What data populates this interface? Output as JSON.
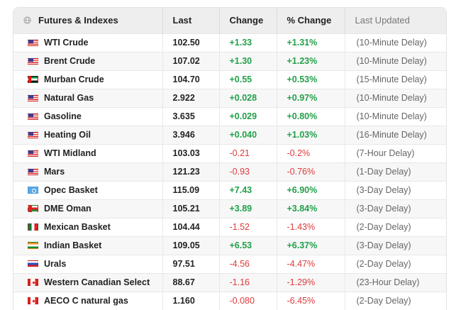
{
  "header": {
    "col_name": "Futures & Indexes",
    "col_last": "Last",
    "col_change": "Change",
    "col_pct": "% Change",
    "col_updated": "Last Updated",
    "globe_icon": "globe-icon"
  },
  "colors": {
    "positive": "#22a04a",
    "negative": "#e03a3a",
    "header_bg": "#eeeeee"
  },
  "rows": [
    {
      "flag": "us-flag-icon",
      "name": "WTI Crude",
      "last": "102.50",
      "change": "+1.33",
      "pct": "+1.31%",
      "updated": "(10-Minute Delay)"
    },
    {
      "flag": "us-flag-icon",
      "name": "Brent Crude",
      "last": "107.02",
      "change": "+1.30",
      "pct": "+1.23%",
      "updated": "(10-Minute Delay)"
    },
    {
      "flag": "uae-flag-icon",
      "name": "Murban Crude",
      "last": "104.70",
      "change": "+0.55",
      "pct": "+0.53%",
      "updated": "(15-Minute Delay)"
    },
    {
      "flag": "us-flag-icon",
      "name": "Natural Gas",
      "last": "2.922",
      "change": "+0.028",
      "pct": "+0.97%",
      "updated": "(10-Minute Delay)"
    },
    {
      "flag": "us-flag-icon",
      "name": "Gasoline",
      "last": "3.635",
      "change": "+0.029",
      "pct": "+0.80%",
      "updated": "(10-Minute Delay)"
    },
    {
      "flag": "us-flag-icon",
      "name": "Heating Oil",
      "last": "3.946",
      "change": "+0.040",
      "pct": "+1.03%",
      "updated": "(16-Minute Delay)"
    },
    {
      "flag": "us-flag-icon",
      "name": "WTI Midland",
      "last": "103.03",
      "change": "-0.21",
      "pct": "-0.2%",
      "updated": "(7-Hour Delay)"
    },
    {
      "flag": "us-flag-icon",
      "name": "Mars",
      "last": "121.23",
      "change": "-0.93",
      "pct": "-0.76%",
      "updated": "(1-Day Delay)"
    },
    {
      "flag": "opec-flag-icon",
      "name": "Opec Basket",
      "last": "115.09",
      "change": "+7.43",
      "pct": "+6.90%",
      "updated": "(3-Day Delay)"
    },
    {
      "flag": "oman-flag-icon",
      "name": "DME Oman",
      "last": "105.21",
      "change": "+3.89",
      "pct": "+3.84%",
      "updated": "(3-Day Delay)"
    },
    {
      "flag": "mexico-flag-icon",
      "name": "Mexican Basket",
      "last": "104.44",
      "change": "-1.52",
      "pct": "-1.43%",
      "updated": "(2-Day Delay)"
    },
    {
      "flag": "india-flag-icon",
      "name": "Indian Basket",
      "last": "109.05",
      "change": "+6.53",
      "pct": "+6.37%",
      "updated": "(3-Day Delay)"
    },
    {
      "flag": "russia-flag-icon",
      "name": "Urals",
      "last": "97.51",
      "change": "-4.56",
      "pct": "-4.47%",
      "updated": "(2-Day Delay)"
    },
    {
      "flag": "canada-flag-icon",
      "name": "Western Canadian Select",
      "last": "88.67",
      "change": "-1.16",
      "pct": "-1.29%",
      "updated": "(23-Hour Delay)"
    },
    {
      "flag": "canada-flag-icon",
      "name": "AECO C natural gas",
      "last": "1.160",
      "change": "-0.080",
      "pct": "-6.45%",
      "updated": "(2-Day Delay)"
    }
  ]
}
